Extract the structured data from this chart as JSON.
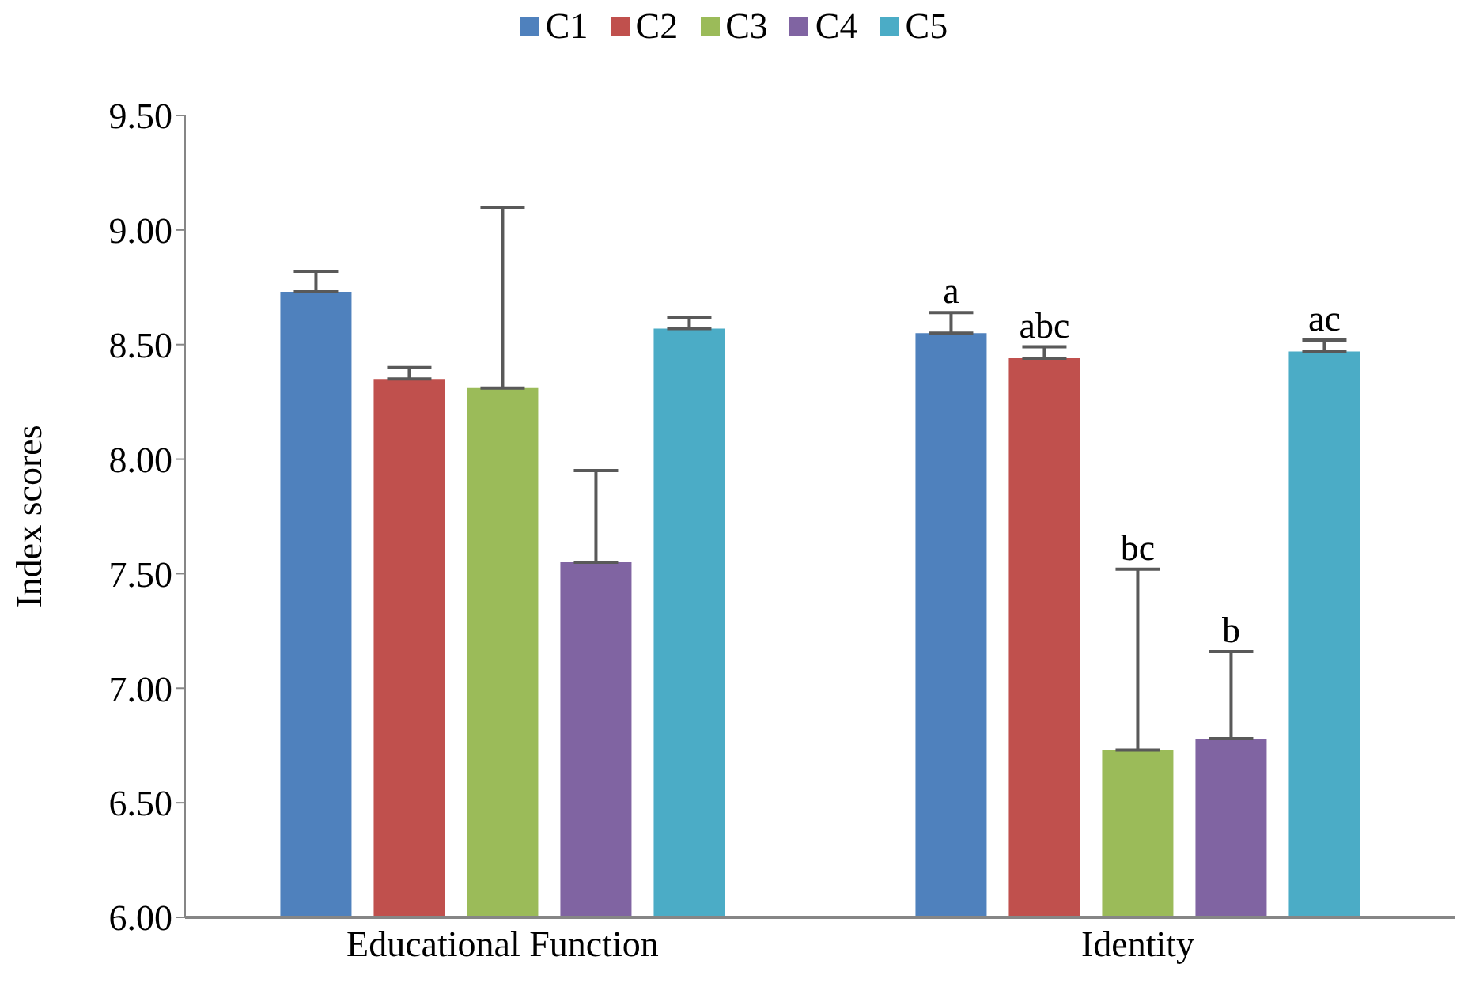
{
  "chart_data": {
    "type": "bar",
    "ylabel": "Index scores",
    "categories": [
      "Educational Function",
      "Identity"
    ],
    "series": [
      {
        "name": "C1",
        "color": "#4f81bd",
        "values": [
          8.73,
          8.55
        ],
        "errors": [
          [
            8.73,
            8.82
          ],
          [
            8.55,
            8.64
          ]
        ]
      },
      {
        "name": "C2",
        "color": "#c0504d",
        "values": [
          8.35,
          8.44
        ],
        "errors": [
          [
            8.35,
            8.4
          ],
          [
            8.44,
            8.49
          ]
        ]
      },
      {
        "name": "C3",
        "color": "#9bbb59",
        "values": [
          8.31,
          6.73
        ],
        "errors": [
          [
            8.31,
            9.1
          ],
          [
            6.73,
            7.52
          ]
        ]
      },
      {
        "name": "C4",
        "color": "#8064a2",
        "values": [
          7.55,
          6.78
        ],
        "errors": [
          [
            7.55,
            7.95
          ],
          [
            6.78,
            7.16
          ]
        ]
      },
      {
        "name": "C5",
        "color": "#4bacc6",
        "values": [
          8.57,
          8.47
        ],
        "errors": [
          [
            8.57,
            8.62
          ],
          [
            8.47,
            8.52
          ]
        ]
      }
    ],
    "annotations": [
      "a",
      "abc",
      "bc",
      "b",
      "ac"
    ],
    "ylim": [
      6,
      9.5
    ],
    "yticks": [
      {
        "value": 6,
        "label": "6.00"
      },
      {
        "value": 6.5,
        "label": "6.50"
      },
      {
        "value": 7,
        "label": "7.00"
      },
      {
        "value": 7.5,
        "label": "7.50"
      },
      {
        "value": 8,
        "label": "8.00"
      },
      {
        "value": 8.5,
        "label": "8.50"
      },
      {
        "value": 9,
        "label": "9.00"
      },
      {
        "value": 9.5,
        "label": "9.50"
      }
    ],
    "grid": false,
    "legend": "top"
  }
}
